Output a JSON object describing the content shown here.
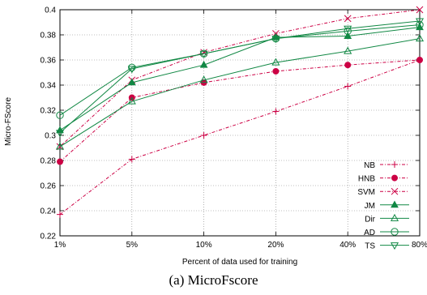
{
  "caption": "(a) MicroFscore",
  "chart_data": {
    "type": "line",
    "categories": [
      "1%",
      "5%",
      "10%",
      "20%",
      "40%",
      "80%"
    ],
    "xlabel": "Percent of data used for training",
    "ylabel": "Micro-FScore",
    "ylim": [
      0.22,
      0.4
    ],
    "yticks": [
      "0.22",
      "0.24",
      "0.26",
      "0.28",
      "0.3",
      "0.32",
      "0.34",
      "0.36",
      "0.38",
      "0.4"
    ],
    "grid": true,
    "legend_position": "bottom-right",
    "series": [
      {
        "name": "NB",
        "values": [
          0.237,
          0.281,
          0.3,
          0.319,
          0.339,
          0.36
        ],
        "color": "#cc0044",
        "marker": "plus",
        "dash": "dashdot"
      },
      {
        "name": "HNB",
        "values": [
          0.279,
          0.33,
          0.342,
          0.351,
          0.356,
          0.36
        ],
        "color": "#cc0044",
        "marker": "dot",
        "dash": "dashdot"
      },
      {
        "name": "SVM",
        "values": [
          0.291,
          0.344,
          0.366,
          0.381,
          0.393,
          0.4
        ],
        "color": "#cc0044",
        "marker": "cross",
        "dash": "dashdot"
      },
      {
        "name": "JM",
        "values": [
          0.304,
          0.342,
          0.356,
          0.378,
          0.379,
          0.386
        ],
        "color": "#118844",
        "marker": "triangle",
        "dash": "solid"
      },
      {
        "name": "Dir",
        "values": [
          0.291,
          0.327,
          0.344,
          0.358,
          0.367,
          0.377
        ],
        "color": "#118844",
        "marker": "triangle-open",
        "dash": "solid"
      },
      {
        "name": "AD",
        "values": [
          0.316,
          0.354,
          0.365,
          0.377,
          0.383,
          0.388
        ],
        "color": "#118844",
        "marker": "circle-open",
        "dash": "solid"
      },
      {
        "name": "TS",
        "values": [
          0.302,
          0.353,
          0.365,
          0.377,
          0.385,
          0.391
        ],
        "color": "#118844",
        "marker": "tri-down-open",
        "dash": "solid"
      }
    ]
  }
}
